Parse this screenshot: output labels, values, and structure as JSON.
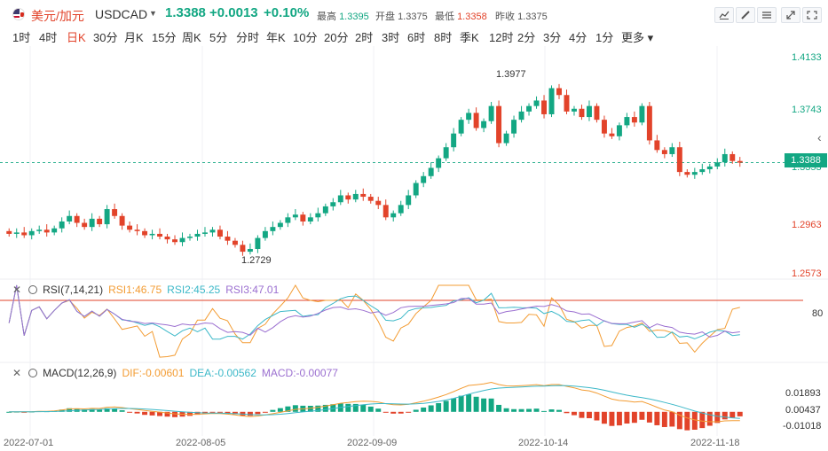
{
  "header": {
    "symbol_name": "美元/加元",
    "symbol_code": "USDCAD",
    "price": "1.3388",
    "change": "+0.0013",
    "change_pct": "+0.10%",
    "high_label": "最高",
    "high": "1.3395",
    "open_label": "开盘",
    "open": "1.3375",
    "low_label": "最低",
    "low": "1.3358",
    "prev_label": "昨收",
    "prev": "1.3375"
  },
  "periods": [
    {
      "label": "1时",
      "active": false
    },
    {
      "label": "4时",
      "active": false
    },
    {
      "label": "日K",
      "active": true
    },
    {
      "label": "30分",
      "active": false
    },
    {
      "label": "月K",
      "active": false
    },
    {
      "label": "15分",
      "active": false
    },
    {
      "label": "周K",
      "active": false
    },
    {
      "label": "5分",
      "active": false
    },
    {
      "label": "分时",
      "active": false
    },
    {
      "label": "年K",
      "active": false
    },
    {
      "label": "10分",
      "active": false
    },
    {
      "label": "20分",
      "active": false
    },
    {
      "label": "2时",
      "active": false
    },
    {
      "label": "3时",
      "active": false
    },
    {
      "label": "6时",
      "active": false
    },
    {
      "label": "8时",
      "active": false
    },
    {
      "label": "季K",
      "active": false
    },
    {
      "label": "12时",
      "active": false
    },
    {
      "label": "2分",
      "active": false
    },
    {
      "label": "3分",
      "active": false
    },
    {
      "label": "4分",
      "active": false
    },
    {
      "label": "1分",
      "active": false
    },
    {
      "label": "更多",
      "active": false
    }
  ],
  "tools": [
    "chart-type-icon",
    "draw-icon",
    "settings-icon",
    "expand-icon",
    "fullscreen-icon"
  ],
  "colors": {
    "up": "#13a783",
    "down": "#e2432a",
    "rsi1": "#f39c33",
    "rsi2": "#3cb8c8",
    "rsi3": "#9b6fd0"
  },
  "chart_data": {
    "type": "candlestick",
    "price_axis": [
      "1.4133",
      "1.3743",
      "1.3353",
      "1.2963",
      "1.2573"
    ],
    "current_price": "1.3388",
    "high_annotation": "1.3977",
    "low_annotation": "1.2729",
    "x_labels": [
      "2022-07-01",
      "2022-08-05",
      "2022-09-09",
      "2022-10-14",
      "2022-11-18"
    ],
    "closes": [
      1.287,
      1.288,
      1.286,
      1.289,
      1.29,
      1.288,
      1.291,
      1.296,
      1.3,
      1.295,
      1.292,
      1.298,
      1.294,
      1.305,
      1.3,
      1.293,
      1.29,
      1.289,
      1.286,
      1.287,
      1.285,
      1.283,
      1.281,
      1.284,
      1.285,
      1.287,
      1.288,
      1.29,
      1.285,
      1.282,
      1.279,
      1.274,
      1.276,
      1.284,
      1.289,
      1.292,
      1.295,
      1.299,
      1.301,
      1.296,
      1.299,
      1.302,
      1.307,
      1.31,
      1.315,
      1.312,
      1.316,
      1.314,
      1.311,
      1.308,
      1.299,
      1.302,
      1.308,
      1.315,
      1.324,
      1.329,
      1.335,
      1.342,
      1.35,
      1.36,
      1.37,
      1.375,
      1.364,
      1.369,
      1.38,
      1.353,
      1.36,
      1.37,
      1.376,
      1.38,
      1.384,
      1.374,
      1.393,
      1.388,
      1.376,
      1.378,
      1.372,
      1.38,
      1.37,
      1.36,
      1.358,
      1.366,
      1.372,
      1.368,
      1.38,
      1.355,
      1.348,
      1.345,
      1.35,
      1.332,
      1.33,
      1.332,
      1.334,
      1.336,
      1.339,
      1.345,
      1.34,
      1.3388
    ],
    "rsi": {
      "name": "RSI(7,14,21)",
      "rsi1": "RSI1:46.75",
      "rsi2": "RSI2:45.25",
      "rsi3": "RSI3:47.01",
      "level": "80"
    },
    "macd": {
      "name": "MACD(12,26,9)",
      "dif": "DIF:-0.00601",
      "dea": "DEA:-0.00562",
      "macd": "MACD:-0.00077",
      "axis": [
        "0.01893",
        "0.00437",
        "-0.01018"
      ]
    }
  }
}
